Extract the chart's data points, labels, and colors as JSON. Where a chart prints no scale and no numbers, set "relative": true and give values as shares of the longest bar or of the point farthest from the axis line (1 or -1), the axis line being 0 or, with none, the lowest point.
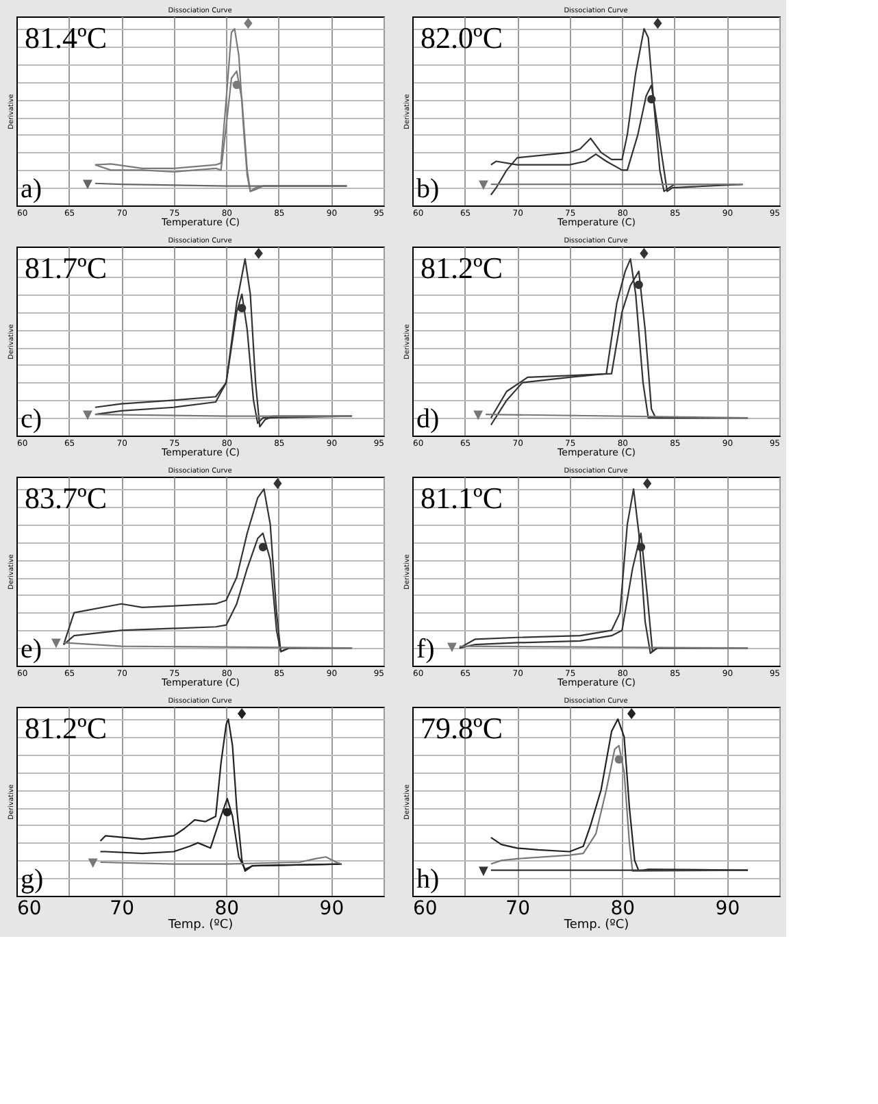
{
  "chart_data": [
    {
      "type": "line",
      "title": "Dissociation Curve",
      "xlabel": "Temperature (C)",
      "ylabel": "Derivative",
      "relative": true,
      "grid": true,
      "xlim": [
        60,
        95
      ],
      "xticks": [
        60,
        65,
        70,
        75,
        80,
        85,
        90,
        95
      ],
      "annotations": [
        "81.4ºC",
        "a)"
      ],
      "series": [
        {
          "name": "♦",
          "color": "#7a7a7a",
          "x": [
            67.5,
            69,
            72,
            75,
            79,
            79.5,
            80,
            80.5,
            80.8,
            81.2,
            81.7,
            82,
            82.3,
            82.8,
            83.5,
            91.5
          ],
          "values": [
            0.23,
            0.235,
            0.21,
            0.21,
            0.23,
            0.24,
            0.6,
            0.98,
            1.0,
            0.85,
            0.4,
            0.17,
            0.08,
            0.1,
            0.11,
            0.11
          ]
        },
        {
          "name": "●",
          "color": "#7a7a7a",
          "x": [
            67.5,
            69,
            72,
            75,
            79,
            79.5,
            80,
            80.5,
            81,
            81.5,
            82,
            82.3,
            82.8,
            83.5,
            91.5
          ],
          "values": [
            0.23,
            0.2,
            0.2,
            0.19,
            0.21,
            0.2,
            0.45,
            0.72,
            0.76,
            0.6,
            0.2,
            0.08,
            0.09,
            0.11,
            0.11
          ]
        },
        {
          "name": "▼",
          "color": "#666666",
          "x": [
            67.5,
            70,
            80,
            91.5
          ],
          "values": [
            0.125,
            0.12,
            0.11,
            0.11
          ]
        }
      ]
    },
    {
      "type": "line",
      "title": "Dissociation Curve",
      "xlabel": "Temperature (C)",
      "ylabel": "Derivative",
      "relative": true,
      "grid": true,
      "xlim": [
        60,
        95
      ],
      "xticks": [
        60,
        65,
        70,
        75,
        80,
        85,
        90,
        95
      ],
      "annotations": [
        "82.0ºC",
        "b)"
      ],
      "series": [
        {
          "name": "♦",
          "color": "#333333",
          "x": [
            67.5,
            68,
            69,
            70,
            75,
            76,
            77,
            78,
            79,
            80,
            80.5,
            81.3,
            82.1,
            82.5,
            83,
            83.6,
            84,
            84.5,
            85,
            91.5
          ],
          "values": [
            0.06,
            0.1,
            0.2,
            0.27,
            0.3,
            0.32,
            0.38,
            0.3,
            0.26,
            0.26,
            0.4,
            0.75,
            1.0,
            0.95,
            0.6,
            0.2,
            0.08,
            0.1,
            0.12,
            0.12
          ]
        },
        {
          "name": "●",
          "color": "#333333",
          "x": [
            67.5,
            68,
            70,
            75,
            76.5,
            77.5,
            78.5,
            80,
            80.5,
            81.5,
            82.3,
            82.8,
            83.5,
            84.3,
            84.8,
            91.5
          ],
          "values": [
            0.23,
            0.25,
            0.23,
            0.23,
            0.25,
            0.29,
            0.25,
            0.2,
            0.2,
            0.4,
            0.62,
            0.68,
            0.4,
            0.08,
            0.1,
            0.12
          ]
        },
        {
          "name": "▼",
          "color": "#777777",
          "x": [
            67.5,
            75,
            85,
            91.5
          ],
          "values": [
            0.12,
            0.12,
            0.12,
            0.12
          ]
        }
      ]
    },
    {
      "type": "line",
      "title": "Dissociation Curve",
      "xlabel": "Temperature (C)",
      "ylabel": "Derivative",
      "relative": true,
      "grid": true,
      "xlim": [
        60,
        95
      ],
      "xticks": [
        60,
        65,
        70,
        75,
        80,
        85,
        90,
        95
      ],
      "annotations": [
        "81.7ºC",
        "c)"
      ],
      "series": [
        {
          "name": "♦",
          "color": "#333333",
          "x": [
            67.5,
            70,
            75,
            79,
            80,
            81,
            81.8,
            82.3,
            82.8,
            83.2,
            83.7,
            84.5,
            92
          ],
          "values": [
            0.16,
            0.18,
            0.2,
            0.22,
            0.3,
            0.75,
            1.0,
            0.8,
            0.3,
            0.05,
            0.09,
            0.11,
            0.11
          ]
        },
        {
          "name": "●",
          "color": "#333333",
          "x": [
            67.5,
            70,
            75,
            79,
            80,
            81,
            81.5,
            82,
            82.6,
            83,
            83.5,
            92
          ],
          "values": [
            0.12,
            0.14,
            0.16,
            0.19,
            0.3,
            0.7,
            0.8,
            0.6,
            0.2,
            0.07,
            0.1,
            0.11
          ]
        },
        {
          "name": "▼",
          "color": "#777777",
          "x": [
            67.5,
            80,
            92
          ],
          "values": [
            0.12,
            0.11,
            0.11
          ]
        }
      ]
    },
    {
      "type": "line",
      "title": "Dissociation Curve",
      "xlabel": "Temperature (C)",
      "ylabel": "Derivative",
      "relative": true,
      "grid": true,
      "xlim": [
        60,
        95
      ],
      "xticks": [
        60,
        65,
        70,
        75,
        80,
        85,
        90,
        95
      ],
      "annotations": [
        "81.2ºC",
        "d)"
      ],
      "series": [
        {
          "name": "♦",
          "color": "#333333",
          "x": [
            67.5,
            69,
            70.5,
            75,
            78.5,
            79.5,
            80.3,
            80.8,
            81.3,
            82,
            82.5,
            83,
            92
          ],
          "values": [
            0.06,
            0.2,
            0.3,
            0.33,
            0.35,
            0.75,
            0.93,
            1.0,
            0.8,
            0.3,
            0.1,
            0.1,
            0.1
          ]
        },
        {
          "name": "●",
          "color": "#333333",
          "x": [
            67.5,
            69,
            71,
            75,
            79,
            80,
            80.8,
            81.6,
            82.2,
            82.8,
            83.2,
            92
          ],
          "values": [
            0.1,
            0.25,
            0.33,
            0.34,
            0.35,
            0.7,
            0.85,
            0.93,
            0.6,
            0.15,
            0.1,
            0.1
          ]
        },
        {
          "name": "▼",
          "color": "#777777",
          "x": [
            67,
            92
          ],
          "values": [
            0.12,
            0.1
          ]
        }
      ]
    },
    {
      "type": "line",
      "title": "Dissociation Curve",
      "xlabel": "Temperature (C)",
      "ylabel": "Derivative",
      "relative": true,
      "grid": true,
      "xlim": [
        60,
        95
      ],
      "xticks": [
        60,
        65,
        70,
        75,
        80,
        85,
        90,
        95
      ],
      "annotations": [
        "83.7ºC",
        "e)"
      ],
      "series": [
        {
          "name": "♦",
          "color": "#333333",
          "x": [
            64.5,
            65.5,
            70,
            72,
            79,
            80,
            81,
            82,
            83,
            83.6,
            84.2,
            84.8,
            85.2,
            86,
            92
          ],
          "values": [
            0.12,
            0.3,
            0.35,
            0.33,
            0.35,
            0.37,
            0.5,
            0.75,
            0.95,
            1.0,
            0.8,
            0.3,
            0.08,
            0.1,
            0.1
          ]
        },
        {
          "name": "●",
          "color": "#333333",
          "x": [
            64.5,
            65.5,
            70,
            79,
            80,
            81,
            82,
            83,
            83.5,
            84.2,
            84.8,
            85.2,
            86,
            92
          ],
          "values": [
            0.12,
            0.17,
            0.2,
            0.22,
            0.23,
            0.35,
            0.55,
            0.72,
            0.75,
            0.6,
            0.2,
            0.08,
            0.1,
            0.1
          ]
        },
        {
          "name": "▼",
          "color": "#777777",
          "x": [
            64.5,
            70,
            92
          ],
          "values": [
            0.13,
            0.11,
            0.1
          ]
        }
      ]
    },
    {
      "type": "line",
      "title": "Dissociation Curve",
      "xlabel": "Temperature (C)",
      "ylabel": "Derivative",
      "relative": true,
      "grid": true,
      "xlim": [
        60,
        95
      ],
      "xticks": [
        60,
        65,
        70,
        75,
        80,
        85,
        90,
        95
      ],
      "annotations": [
        "81.1ºC",
        "f)"
      ],
      "series": [
        {
          "name": "♦",
          "color": "#333333",
          "x": [
            64.5,
            66,
            70,
            76,
            79,
            79.8,
            80.5,
            81.1,
            81.6,
            82.2,
            82.7,
            83.3,
            92
          ],
          "values": [
            0.1,
            0.15,
            0.16,
            0.17,
            0.2,
            0.3,
            0.8,
            1.0,
            0.75,
            0.25,
            0.07,
            0.1,
            0.1
          ]
        },
        {
          "name": "●",
          "color": "#333333",
          "x": [
            64.5,
            66,
            70,
            76,
            79,
            80,
            81,
            81.8,
            82.4,
            82.9,
            83.4,
            92
          ],
          "values": [
            0.1,
            0.12,
            0.13,
            0.14,
            0.17,
            0.2,
            0.55,
            0.75,
            0.4,
            0.08,
            0.1,
            0.1
          ]
        },
        {
          "name": "▼",
          "color": "#777777",
          "x": [
            64.5,
            92
          ],
          "values": [
            0.11,
            0.1
          ]
        }
      ]
    },
    {
      "type": "line",
      "title": "Dissociation Curve",
      "xlabel": "Temp. (ºC)",
      "ylabel": "Derivative",
      "relative": true,
      "grid": true,
      "xlim": [
        60,
        95
      ],
      "xticks": [
        60,
        {
          "value": 65,
          "label": null
        },
        70,
        {
          "value": 75,
          "label": null
        },
        80,
        {
          "value": 85,
          "label": null
        },
        90,
        {
          "value": 95,
          "label": null
        }
      ],
      "annotations": [
        "81.2ºC",
        "g)"
      ],
      "series": [
        {
          "name": "♦",
          "color": "#222222",
          "x": [
            68,
            68.5,
            72,
            75,
            76,
            77,
            78,
            79,
            79.5,
            80,
            80.2,
            80.6,
            81,
            81.5,
            81.8,
            82.5,
            91
          ],
          "values": [
            0.31,
            0.34,
            0.32,
            0.34,
            0.38,
            0.43,
            0.42,
            0.45,
            0.75,
            0.97,
            1.0,
            0.85,
            0.5,
            0.2,
            0.14,
            0.17,
            0.18
          ]
        },
        {
          "name": "●",
          "color": "#222222",
          "x": [
            68,
            68.5,
            72,
            75,
            76.5,
            77.3,
            78.5,
            79.5,
            80.1,
            80.6,
            81.2,
            81.8,
            82.5,
            91
          ],
          "values": [
            0.25,
            0.25,
            0.24,
            0.25,
            0.28,
            0.3,
            0.27,
            0.45,
            0.55,
            0.45,
            0.22,
            0.15,
            0.17,
            0.18
          ]
        },
        {
          "name": "▼",
          "color": "#777777",
          "x": [
            68,
            75,
            80,
            87,
            88.5,
            89.5,
            90.5,
            91
          ],
          "values": [
            0.19,
            0.18,
            0.18,
            0.19,
            0.21,
            0.22,
            0.19,
            0.18
          ]
        }
      ]
    },
    {
      "type": "line",
      "title": "Dissociation Curve",
      "xlabel": "Temp. (ºC)",
      "ylabel": "Derivative",
      "relative": true,
      "grid": true,
      "xlim": [
        60,
        95
      ],
      "xticks": [
        60,
        {
          "value": 65,
          "label": null
        },
        70,
        {
          "value": 75,
          "label": null
        },
        80,
        {
          "value": 85,
          "label": null
        },
        90,
        {
          "value": 95,
          "label": null
        }
      ],
      "annotations": [
        "79.8ºC",
        "h)"
      ],
      "series": [
        {
          "name": "♦",
          "color": "#222222",
          "x": [
            67.5,
            68.5,
            70,
            72,
            75,
            76.3,
            77,
            78,
            79,
            79.6,
            80.2,
            80.7,
            81.2,
            81.6,
            82.5,
            92
          ],
          "values": [
            0.33,
            0.29,
            0.27,
            0.26,
            0.25,
            0.28,
            0.4,
            0.6,
            0.93,
            1.0,
            0.9,
            0.5,
            0.2,
            0.14,
            0.15,
            0.145
          ]
        },
        {
          "name": "●",
          "color": "#777777",
          "x": [
            67.5,
            68.5,
            70,
            75,
            76.3,
            77.5,
            78.5,
            79.3,
            79.7,
            80.2,
            80.7,
            81,
            81.5,
            92
          ],
          "values": [
            0.18,
            0.2,
            0.21,
            0.23,
            0.24,
            0.35,
            0.6,
            0.83,
            0.85,
            0.7,
            0.3,
            0.14,
            0.14,
            0.145
          ]
        },
        {
          "name": "▼",
          "color": "#333333",
          "x": [
            67.5,
            92
          ],
          "values": [
            0.145,
            0.145
          ]
        }
      ]
    }
  ]
}
